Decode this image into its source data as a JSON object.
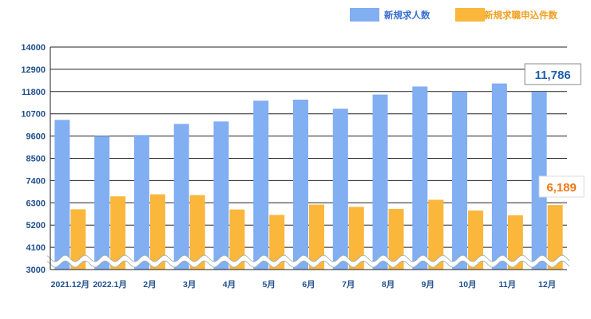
{
  "chart_data": {
    "type": "bar",
    "categories": [
      "2021.12月",
      "2022.1月",
      "2月",
      "3月",
      "4月",
      "5月",
      "6月",
      "7月",
      "8月",
      "9月",
      "10月",
      "11月",
      "12月"
    ],
    "series": [
      {
        "name": "新規求人数",
        "color": "#82aef2",
        "values": [
          10400,
          9600,
          9650,
          10200,
          10320,
          11350,
          11400,
          10950,
          11650,
          12050,
          11800,
          12200,
          11786
        ]
      },
      {
        "name": "新規求職申込件数",
        "color": "#fbb73b",
        "values": [
          5980,
          6620,
          6720,
          6680,
          5970,
          5700,
          6210,
          6100,
          6000,
          6450,
          5920,
          5680,
          6189
        ]
      }
    ],
    "y_ticks": [
      3000,
      4100,
      5200,
      6300,
      7400,
      8500,
      9600,
      10700,
      11800,
      12900,
      14000
    ],
    "ylim": [
      3000,
      14000
    ],
    "axis_break": true,
    "grid": true,
    "legend_position": "top-right",
    "annotations": [
      {
        "series": "新規求人数",
        "category": "12月",
        "text": "11,786",
        "color": "#1f5fa8"
      },
      {
        "series": "新規求職申込件数",
        "category": "12月",
        "text": "6,189",
        "color": "#f07a1a"
      }
    ]
  }
}
